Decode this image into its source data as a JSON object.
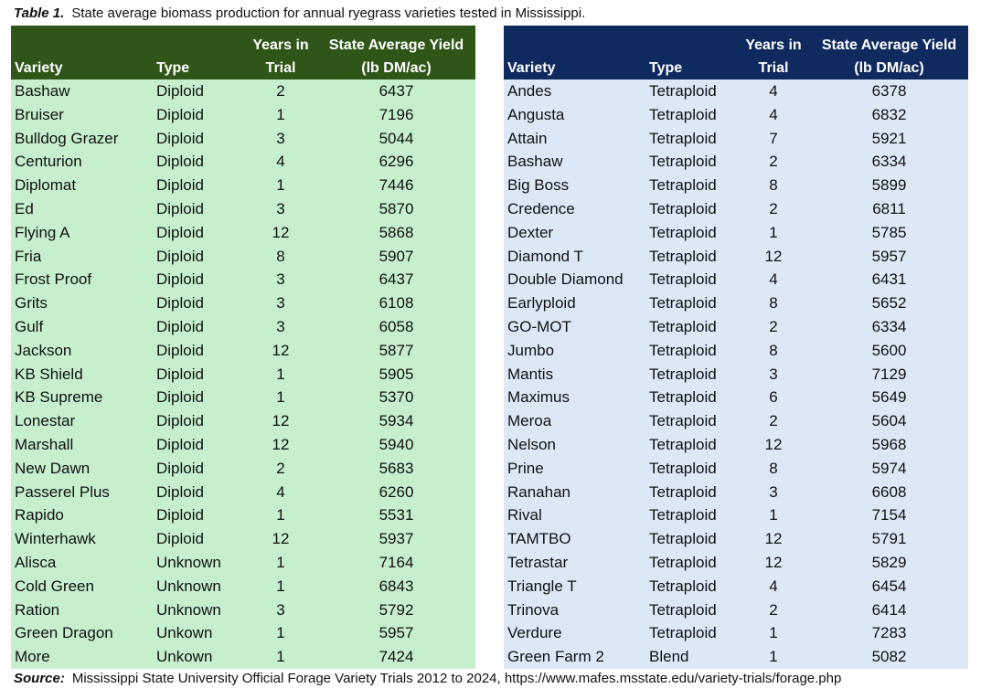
{
  "caption": {
    "label": "Table 1.",
    "text": "State average biomass production for annual ryegrass varieties tested in Mississippi."
  },
  "headers": {
    "variety": "Variety",
    "type": "Type",
    "years_line1": "Years in",
    "years_line2": "Trial",
    "yield_line1": "State Average Yield",
    "yield_line2": "(lb DM/ac)"
  },
  "colors": {
    "left_header": "#2f5618",
    "left_body": "#c6efce",
    "right_header": "#0f2a5e",
    "right_body": "#dce8f6"
  },
  "left_rows": [
    {
      "variety": "Bashaw",
      "type": "Diploid",
      "years": "2",
      "yield": "6437"
    },
    {
      "variety": "Bruiser",
      "type": "Diploid",
      "years": "1",
      "yield": "7196"
    },
    {
      "variety": "Bulldog Grazer",
      "type": "Diploid",
      "years": "3",
      "yield": "5044"
    },
    {
      "variety": "Centurion",
      "type": "Diploid",
      "years": "4",
      "yield": "6296"
    },
    {
      "variety": "Diplomat",
      "type": "Diploid",
      "years": "1",
      "yield": "7446"
    },
    {
      "variety": "Ed",
      "type": "Diploid",
      "years": "3",
      "yield": "5870"
    },
    {
      "variety": "Flying A",
      "type": "Diploid",
      "years": "12",
      "yield": "5868"
    },
    {
      "variety": "Fria",
      "type": "Diploid",
      "years": "8",
      "yield": "5907"
    },
    {
      "variety": "Frost Proof",
      "type": "Diploid",
      "years": "3",
      "yield": "6437"
    },
    {
      "variety": "Grits",
      "type": "Diploid",
      "years": "3",
      "yield": "6108"
    },
    {
      "variety": "Gulf",
      "type": "Diploid",
      "years": "3",
      "yield": "6058"
    },
    {
      "variety": "Jackson",
      "type": "Diploid",
      "years": "12",
      "yield": "5877"
    },
    {
      "variety": "KB Shield",
      "type": "Diploid",
      "years": "1",
      "yield": "5905"
    },
    {
      "variety": "KB Supreme",
      "type": "Diploid",
      "years": "1",
      "yield": "5370"
    },
    {
      "variety": "Lonestar",
      "type": "Diploid",
      "years": "12",
      "yield": "5934"
    },
    {
      "variety": "Marshall",
      "type": "Diploid",
      "years": "12",
      "yield": "5940"
    },
    {
      "variety": "New Dawn",
      "type": "Diploid",
      "years": "2",
      "yield": "5683"
    },
    {
      "variety": "Passerel Plus",
      "type": "Diploid",
      "years": "4",
      "yield": "6260"
    },
    {
      "variety": "Rapido",
      "type": "Diploid",
      "years": "1",
      "yield": "5531"
    },
    {
      "variety": "Winterhawk",
      "type": "Diploid",
      "years": "12",
      "yield": "5937"
    },
    {
      "variety": "Alisca",
      "type": "Unknown",
      "years": "1",
      "yield": "7164"
    },
    {
      "variety": "Cold Green",
      "type": "Unknown",
      "years": "1",
      "yield": "6843"
    },
    {
      "variety": "Ration",
      "type": "Unknown",
      "years": "3",
      "yield": "5792"
    },
    {
      "variety": "Green Dragon",
      "type": "Unkown",
      "years": "1",
      "yield": "5957"
    },
    {
      "variety": "More",
      "type": "Unkown",
      "years": "1",
      "yield": "7424"
    }
  ],
  "right_rows": [
    {
      "variety": "Andes",
      "type": "Tetraploid",
      "years": "4",
      "yield": "6378"
    },
    {
      "variety": "Angusta",
      "type": "Tetraploid",
      "years": "4",
      "yield": "6832"
    },
    {
      "variety": "Attain",
      "type": "Tetraploid",
      "years": "7",
      "yield": "5921"
    },
    {
      "variety": "Bashaw",
      "type": "Tetraploid",
      "years": "2",
      "yield": "6334"
    },
    {
      "variety": "Big Boss",
      "type": "Tetraploid",
      "years": "8",
      "yield": "5899"
    },
    {
      "variety": "Credence",
      "type": "Tetraploid",
      "years": "2",
      "yield": "6811"
    },
    {
      "variety": "Dexter",
      "type": "Tetraploid",
      "years": "1",
      "yield": "5785"
    },
    {
      "variety": "Diamond T",
      "type": "Tetraploid",
      "years": "12",
      "yield": "5957"
    },
    {
      "variety": "Double Diamond",
      "type": "Tetraploid",
      "years": "4",
      "yield": "6431"
    },
    {
      "variety": "Earlyploid",
      "type": "Tetraploid",
      "years": "8",
      "yield": "5652"
    },
    {
      "variety": "GO-MOT",
      "type": "Tetraploid",
      "years": "2",
      "yield": "6334"
    },
    {
      "variety": "Jumbo",
      "type": "Tetraploid",
      "years": "8",
      "yield": "5600"
    },
    {
      "variety": "Mantis",
      "type": "Tetraploid",
      "years": "3",
      "yield": "7129"
    },
    {
      "variety": "Maximus",
      "type": "Tetraploid",
      "years": "6",
      "yield": "5649"
    },
    {
      "variety": "Meroa",
      "type": "Tetraploid",
      "years": "2",
      "yield": "5604"
    },
    {
      "variety": "Nelson",
      "type": "Tetraploid",
      "years": "12",
      "yield": "5968"
    },
    {
      "variety": "Prine",
      "type": "Tetraploid",
      "years": "8",
      "yield": "5974"
    },
    {
      "variety": "Ranahan",
      "type": "Tetraploid",
      "years": "3",
      "yield": "6608"
    },
    {
      "variety": "Rival",
      "type": "Tetraploid",
      "years": "1",
      "yield": "7154"
    },
    {
      "variety": "TAMTBO",
      "type": "Tetraploid",
      "years": "12",
      "yield": "5791"
    },
    {
      "variety": "Tetrastar",
      "type": "Tetraploid",
      "years": "12",
      "yield": "5829"
    },
    {
      "variety": "Triangle T",
      "type": "Tetraploid",
      "years": "4",
      "yield": "6454"
    },
    {
      "variety": "Trinova",
      "type": "Tetraploid",
      "years": "2",
      "yield": "6414"
    },
    {
      "variety": "Verdure",
      "type": "Tetraploid",
      "years": "1",
      "yield": "7283"
    },
    {
      "variety": "Green Farm 2",
      "type": "Blend",
      "years": "1",
      "yield": "5082"
    }
  ],
  "source": {
    "label": "Source:",
    "text": "Mississippi State University Official Forage Variety Trials 2012 to 2024,  https://www.mafes.msstate.edu/variety-trials/forage.php"
  }
}
